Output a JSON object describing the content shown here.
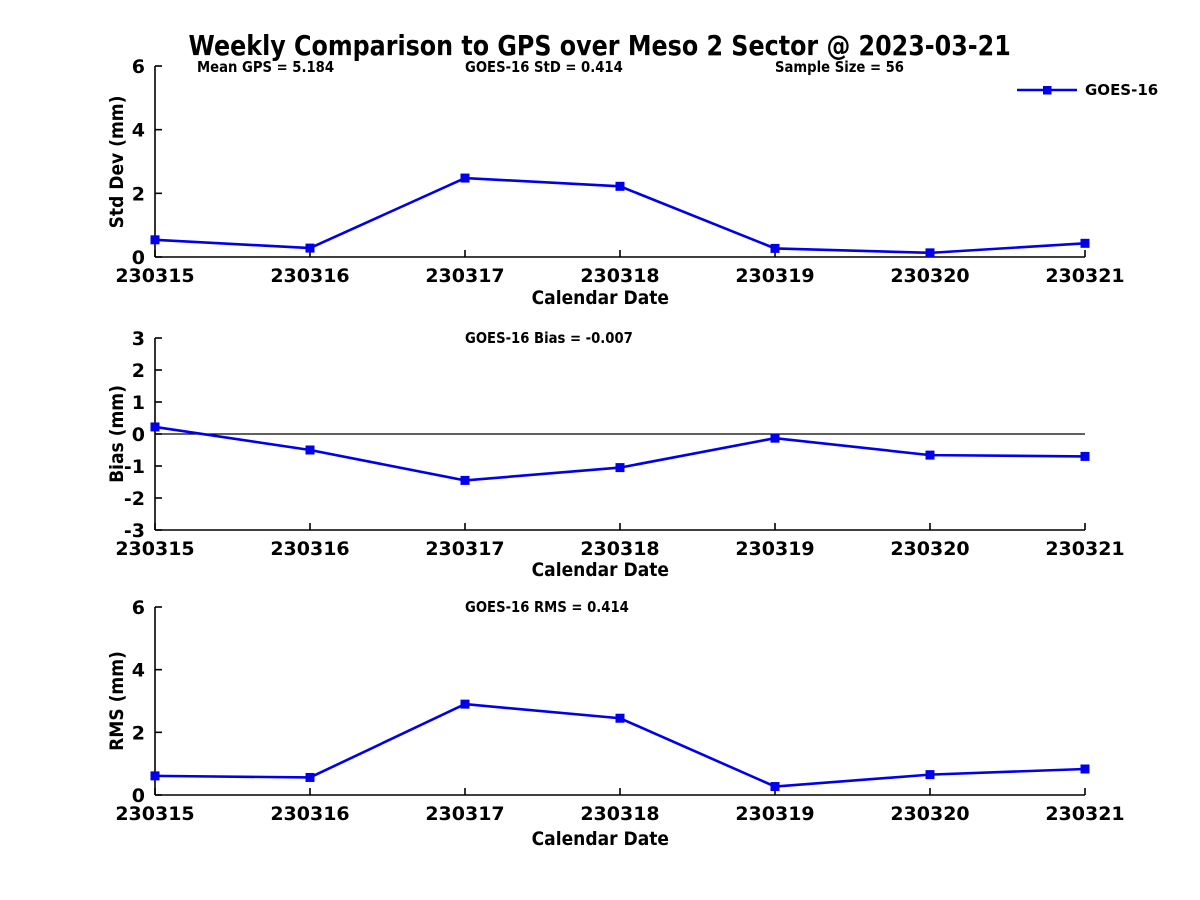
{
  "figure": {
    "title": "Weekly Comparison to GPS over Meso 2 Sector @ 2023-03-21",
    "background_color": "#ffffff",
    "axis_color": "#000000",
    "line_color": "#0000ee",
    "legend": {
      "label": "GOES-16",
      "marker": "filled-square",
      "position": "upper right"
    }
  },
  "chart_data": [
    {
      "type": "line",
      "title": "",
      "xlabel": "Calendar Date",
      "ylabel": "Std Dev (mm)",
      "categories": [
        "230315",
        "230316",
        "230317",
        "230318",
        "230319",
        "230320",
        "230321"
      ],
      "series": [
        {
          "name": "GOES-16",
          "values": [
            0.54,
            0.28,
            2.48,
            2.22,
            0.27,
            0.13,
            0.43
          ]
        }
      ],
      "ylim": [
        0,
        6
      ],
      "yticks": [
        0,
        2,
        4,
        6
      ],
      "grid": false,
      "zero_line": false,
      "legend": [
        "GOES-16"
      ],
      "annotations": [
        "Mean GPS = 5.184",
        "GOES-16 StD = 0.414",
        "Sample Size = 56"
      ]
    },
    {
      "type": "line",
      "title": "",
      "xlabel": "Calendar Date",
      "ylabel": "Bias (mm)",
      "categories": [
        "230315",
        "230316",
        "230317",
        "230318",
        "230319",
        "230320",
        "230321"
      ],
      "series": [
        {
          "name": "GOES-16",
          "values": [
            0.22,
            -0.5,
            -1.45,
            -1.05,
            -0.13,
            -0.66,
            -0.7
          ]
        }
      ],
      "ylim": [
        -3,
        3
      ],
      "yticks": [
        -3,
        -2,
        -1,
        0,
        1,
        2,
        3
      ],
      "grid": false,
      "zero_line": true,
      "legend": [],
      "annotations": [
        "GOES-16 Bias  = -0.007"
      ]
    },
    {
      "type": "line",
      "title": "",
      "xlabel": "Calendar Date",
      "ylabel": "RMS (mm)",
      "categories": [
        "230315",
        "230316",
        "230317",
        "230318",
        "230319",
        "230320",
        "230321"
      ],
      "series": [
        {
          "name": "GOES-16",
          "values": [
            0.61,
            0.56,
            2.9,
            2.45,
            0.27,
            0.65,
            0.83
          ]
        }
      ],
      "ylim": [
        0,
        6
      ],
      "yticks": [
        0,
        2,
        4,
        6
      ],
      "grid": false,
      "zero_line": false,
      "legend": [],
      "annotations": [
        "GOES-16 RMS = 0.414"
      ]
    }
  ]
}
